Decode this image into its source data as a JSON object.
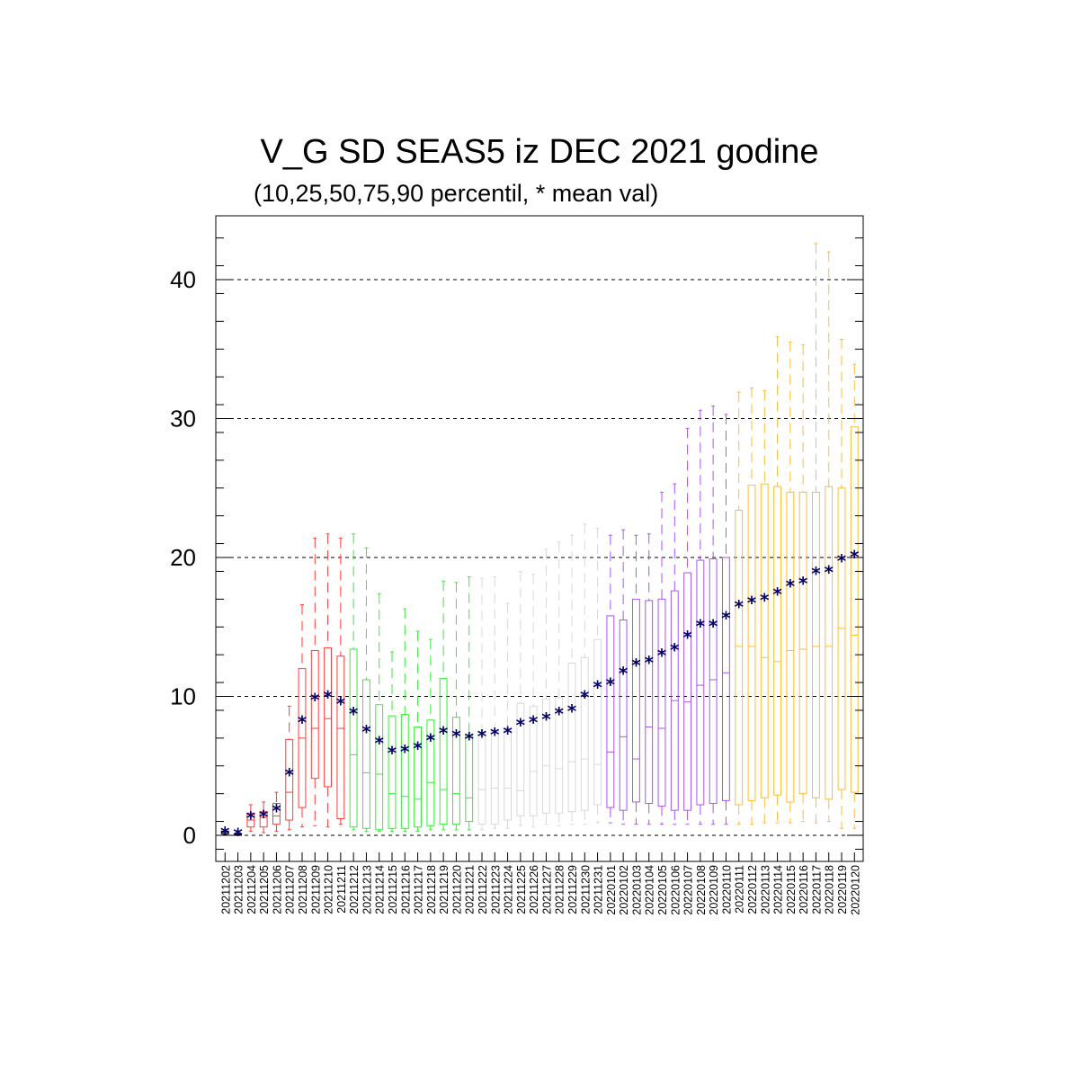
{
  "chart_data": {
    "type": "boxplot",
    "title": "V_G SD SEAS5 iz DEC 2021 godine",
    "subtitle": "(10,25,50,75,90 percentil, * mean val)",
    "xlabel": "",
    "ylabel": "",
    "ylim": [
      -2,
      44.5
    ],
    "yticks": [
      0,
      10,
      20,
      30,
      40
    ],
    "grid": "horizontal dashed at major ticks",
    "categories": [
      "20211202",
      "20211203",
      "20211204",
      "20211205",
      "20211206",
      "20211207",
      "20211208",
      "20211209",
      "20211210",
      "20211211",
      "20211212",
      "20211213",
      "20211214",
      "20211215",
      "20211216",
      "20211217",
      "20211218",
      "20211219",
      "20211220",
      "20211221",
      "20211222",
      "20211223",
      "20211224",
      "20211225",
      "20211226",
      "20211227",
      "20211228",
      "20211229",
      "20211230",
      "20211231",
      "20220101",
      "20220102",
      "20220103",
      "20220104",
      "20220105",
      "20220106",
      "20220107",
      "20220108",
      "20220109",
      "20220110",
      "20220111",
      "20220112",
      "20220113",
      "20220114",
      "20220115",
      "20220116",
      "20220117",
      "20220118",
      "20220119",
      "20220120"
    ],
    "colors": [
      "#000000",
      "#000000",
      "#ff3b3b",
      "#ff3b3b",
      "#ff3b3b",
      "#ff3b3b",
      "#ff3b3b",
      "#ff3b3b",
      "#ff3b3b",
      "#ff3b3b",
      "#33ee33",
      "#33ee33",
      "#33ee33",
      "#33ee33",
      "#33ee33",
      "#33ee33",
      "#33ee33",
      "#33ee33",
      "#33ee33",
      "#33ee33",
      "#d8d8d8",
      "#d8d8d8",
      "#d8d8d8",
      "#d8d8d8",
      "#d8d8d8",
      "#d8d8d8",
      "#d8d8d8",
      "#d8d8d8",
      "#d8d8d8",
      "#d8d8d8",
      "#aa55ee",
      "#aa55ee",
      "#aa55ee",
      "#aa55ee",
      "#aa55ee",
      "#aa55ee",
      "#aa55ee",
      "#aa55ee",
      "#aa55ee",
      "#aa55ee",
      "#ffbb33",
      "#ffbb33",
      "#ffbb33",
      "#ffbb33",
      "#ffbb33",
      "#ffbb33",
      "#ffbb33",
      "#ffbb33",
      "#ffbb33",
      "#ffbb33"
    ],
    "mean_color": "#000066",
    "series": [
      {
        "p10": 0.05,
        "p25": 0.1,
        "p50": 0.2,
        "p75": 0.3,
        "p90": 0.4,
        "mean": 0.2
      },
      {
        "p10": 0.0,
        "p25": 0.0,
        "p50": 0.05,
        "p75": 0.1,
        "p90": 0.2,
        "mean": 0.1
      },
      {
        "p10": 0.3,
        "p25": 0.6,
        "p50": 1.1,
        "p75": 1.6,
        "p90": 2.2,
        "mean": 1.3
      },
      {
        "p10": 0.2,
        "p25": 0.6,
        "p50": 1.3,
        "p75": 1.7,
        "p90": 2.4,
        "mean": 1.4
      },
      {
        "p10": 0.3,
        "p25": 0.8,
        "p50": 1.4,
        "p75": 2.3,
        "p90": 3.1,
        "mean": 1.8
      },
      {
        "p10": 0.4,
        "p25": 1.1,
        "p50": 3.1,
        "p75": 6.9,
        "p90": 9.3,
        "mean": 4.4
      },
      {
        "p10": 0.6,
        "p25": 2.0,
        "p50": 7.0,
        "p75": 12.0,
        "p90": 16.6,
        "mean": 8.2
      },
      {
        "p10": 0.7,
        "p25": 4.1,
        "p50": 7.7,
        "p75": 13.3,
        "p90": 21.4,
        "mean": 9.8
      },
      {
        "p10": 0.6,
        "p25": 3.5,
        "p50": 8.4,
        "p75": 13.5,
        "p90": 21.7,
        "mean": 10.0
      },
      {
        "p10": 0.8,
        "p25": 1.2,
        "p50": 7.7,
        "p75": 12.9,
        "p90": 21.4,
        "mean": 9.5
      },
      {
        "p10": 0.4,
        "p25": 0.6,
        "p50": 5.8,
        "p75": 13.4,
        "p90": 21.7,
        "mean": 8.8
      },
      {
        "p10": 0.3,
        "p25": 0.5,
        "p50": 4.5,
        "p75": 11.2,
        "p90": 20.7,
        "mean": 7.5
      },
      {
        "p10": 0.3,
        "p25": 0.4,
        "p50": 4.4,
        "p75": 9.4,
        "p90": 17.4,
        "mean": 6.7
      },
      {
        "p10": 0.3,
        "p25": 0.5,
        "p50": 3.0,
        "p75": 8.6,
        "p90": 13.2,
        "mean": 6.0
      },
      {
        "p10": 0.3,
        "p25": 0.5,
        "p50": 2.8,
        "p75": 8.7,
        "p90": 16.3,
        "mean": 6.1
      },
      {
        "p10": 0.3,
        "p25": 0.6,
        "p50": 2.6,
        "p75": 7.8,
        "p90": 14.7,
        "mean": 6.3
      },
      {
        "p10": 0.4,
        "p25": 0.7,
        "p50": 3.8,
        "p75": 8.3,
        "p90": 14.1,
        "mean": 6.9
      },
      {
        "p10": 0.4,
        "p25": 0.8,
        "p50": 3.3,
        "p75": 11.3,
        "p90": 18.3,
        "mean": 7.4
      },
      {
        "p10": 0.4,
        "p25": 0.8,
        "p50": 3.0,
        "p75": 8.5,
        "p90": 18.2,
        "mean": 7.2
      },
      {
        "p10": 0.4,
        "p25": 1.0,
        "p50": 2.7,
        "p75": 7.2,
        "p90": 18.6,
        "mean": 7.0
      },
      {
        "p10": 0.4,
        "p25": 0.8,
        "p50": 3.3,
        "p75": 7.4,
        "p90": 18.5,
        "mean": 7.2
      },
      {
        "p10": 0.5,
        "p25": 0.8,
        "p50": 3.4,
        "p75": 7.5,
        "p90": 18.6,
        "mean": 7.3
      },
      {
        "p10": 0.5,
        "p25": 1.1,
        "p50": 3.4,
        "p75": 7.6,
        "p90": 16.7,
        "mean": 7.4
      },
      {
        "p10": 0.7,
        "p25": 1.4,
        "p50": 3.2,
        "p75": 9.5,
        "p90": 19.0,
        "mean": 8.0
      },
      {
        "p10": 0.6,
        "p25": 1.4,
        "p50": 4.6,
        "p75": 9.3,
        "p90": 18.8,
        "mean": 8.2
      },
      {
        "p10": 0.8,
        "p25": 1.6,
        "p50": 5.0,
        "p75": 9.8,
        "p90": 20.6,
        "mean": 8.4
      },
      {
        "p10": 0.7,
        "p25": 1.6,
        "p50": 4.8,
        "p75": 9.9,
        "p90": 21.1,
        "mean": 8.8
      },
      {
        "p10": 0.8,
        "p25": 1.7,
        "p50": 5.3,
        "p75": 12.4,
        "p90": 21.6,
        "mean": 9.0
      },
      {
        "p10": 0.8,
        "p25": 1.8,
        "p50": 5.5,
        "p75": 12.8,
        "p90": 22.4,
        "mean": 10.0
      },
      {
        "p10": 0.9,
        "p25": 2.2,
        "p50": 5.1,
        "p75": 14.1,
        "p90": 22.1,
        "mean": 10.7
      },
      {
        "p10": 0.9,
        "p25": 2.0,
        "p50": 6.0,
        "p75": 15.8,
        "p90": 21.6,
        "mean": 10.9
      },
      {
        "p10": 0.8,
        "p25": 1.8,
        "p50": 7.1,
        "p75": 15.5,
        "p90": 22.0,
        "mean": 11.7
      },
      {
        "p10": 0.8,
        "p25": 2.4,
        "p50": 5.5,
        "p75": 17.0,
        "p90": 21.6,
        "mean": 12.3
      },
      {
        "p10": 0.8,
        "p25": 2.3,
        "p50": 7.8,
        "p75": 16.9,
        "p90": 21.7,
        "mean": 12.5
      },
      {
        "p10": 0.8,
        "p25": 2.1,
        "p50": 7.7,
        "p75": 17.0,
        "p90": 24.7,
        "mean": 13.0
      },
      {
        "p10": 0.8,
        "p25": 1.8,
        "p50": 9.7,
        "p75": 17.6,
        "p90": 25.3,
        "mean": 13.4
      },
      {
        "p10": 0.8,
        "p25": 1.8,
        "p50": 9.6,
        "p75": 18.9,
        "p90": 29.3,
        "mean": 14.3
      },
      {
        "p10": 0.8,
        "p25": 2.2,
        "p50": 10.8,
        "p75": 19.8,
        "p90": 30.6,
        "mean": 15.1
      },
      {
        "p10": 0.8,
        "p25": 2.3,
        "p50": 11.2,
        "p75": 19.9,
        "p90": 30.9,
        "mean": 15.1
      },
      {
        "p10": 0.8,
        "p25": 2.5,
        "p50": 11.7,
        "p75": 20.0,
        "p90": 30.3,
        "mean": 15.7
      },
      {
        "p10": 0.8,
        "p25": 2.2,
        "p50": 13.6,
        "p75": 23.4,
        "p90": 31.9,
        "mean": 16.5
      },
      {
        "p10": 0.8,
        "p25": 2.5,
        "p50": 13.6,
        "p75": 25.2,
        "p90": 32.2,
        "mean": 16.8
      },
      {
        "p10": 0.9,
        "p25": 2.7,
        "p50": 12.8,
        "p75": 25.3,
        "p90": 32.0,
        "mean": 17.0
      },
      {
        "p10": 0.9,
        "p25": 2.9,
        "p50": 12.5,
        "p75": 25.1,
        "p90": 35.9,
        "mean": 17.4
      },
      {
        "p10": 0.9,
        "p25": 2.4,
        "p50": 13.3,
        "p75": 24.7,
        "p90": 35.5,
        "mean": 18.0
      },
      {
        "p10": 1.0,
        "p25": 3.0,
        "p50": 13.4,
        "p75": 24.7,
        "p90": 35.3,
        "mean": 18.2
      },
      {
        "p10": 0.9,
        "p25": 2.7,
        "p50": 13.6,
        "p75": 24.7,
        "p90": 42.6,
        "mean": 18.9
      },
      {
        "p10": 1.0,
        "p25": 2.6,
        "p50": 13.6,
        "p75": 25.1,
        "p90": 42.0,
        "mean": 19.0
      },
      {
        "p10": 0.5,
        "p25": 3.3,
        "p50": 14.9,
        "p75": 25.0,
        "p90": 35.7,
        "mean": 19.8
      },
      {
        "p10": 0.5,
        "p25": 3.1,
        "p50": 14.4,
        "p75": 29.4,
        "p90": 33.9,
        "mean": 20.1
      }
    ]
  }
}
